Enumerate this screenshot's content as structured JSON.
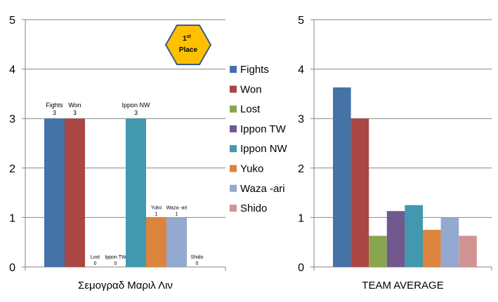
{
  "chart_data": [
    {
      "type": "bar",
      "xlabel": "Σεμογραδ Μαριλ Λιν",
      "ylim": [
        0,
        5
      ],
      "yticks": [
        "0",
        "1",
        "2",
        "3",
        "4",
        "5"
      ],
      "grid": "horizontal",
      "series": [
        {
          "name": "Fights",
          "value": 3,
          "label": "Fights\n3",
          "color": "#4572A7"
        },
        {
          "name": "Won",
          "value": 3,
          "label": "Won\n3",
          "color": "#AA4643"
        },
        {
          "name": "Lost",
          "value": 0,
          "label": "Lost\n0",
          "color": "#89A54E"
        },
        {
          "name": "Ippon TW",
          "value": 0,
          "label": "Ippon TW\n0",
          "color": "#71588F"
        },
        {
          "name": "Ippon NW",
          "value": 3,
          "label": "Ippon NW\n3",
          "color": "#4198AF"
        },
        {
          "name": "Yuko",
          "value": 1,
          "label": "Yuko\n1",
          "color": "#DB843D"
        },
        {
          "name": "Waza -ari",
          "value": 1,
          "label": "Waza -ari\n1",
          "color": "#93A9CF"
        },
        {
          "name": "Shido",
          "value": 0,
          "label": "Shido\n0",
          "color": "#D19392"
        }
      ]
    },
    {
      "type": "bar",
      "xlabel": "TEAM AVERAGE",
      "ylim": [
        0,
        5
      ],
      "yticks": [
        "0",
        "1",
        "2",
        "3",
        "4",
        "5"
      ],
      "grid": "horizontal",
      "series": [
        {
          "name": "Fights",
          "value": 3.63,
          "color": "#4572A7"
        },
        {
          "name": "Won",
          "value": 3.0,
          "color": "#AA4643"
        },
        {
          "name": "Lost",
          "value": 0.63,
          "color": "#89A54E"
        },
        {
          "name": "Ippon TW",
          "value": 1.13,
          "color": "#71588F"
        },
        {
          "name": "Ippon NW",
          "value": 1.25,
          "color": "#4198AF"
        },
        {
          "name": "Yuko",
          "value": 0.75,
          "color": "#DB843D"
        },
        {
          "name": "Waza -ari",
          "value": 1.0,
          "color": "#93A9CF"
        },
        {
          "name": "Shido",
          "value": 0.63,
          "color": "#D19392"
        }
      ]
    }
  ],
  "legend": {
    "placement": "center",
    "items": [
      "Fights",
      "Won",
      "Lost",
      "Ippon TW",
      "Ippon NW",
      "Yuko",
      "Waza -ari",
      "Shido"
    ],
    "colors": [
      "#4572A7",
      "#AA4643",
      "#89A54E",
      "#71588F",
      "#4198AF",
      "#DB843D",
      "#93A9CF",
      "#D19392"
    ]
  },
  "badge": {
    "number": "1",
    "suffix": "st",
    "word": "Place",
    "fill": "#FFC000",
    "stroke": "#3A5A8C"
  }
}
